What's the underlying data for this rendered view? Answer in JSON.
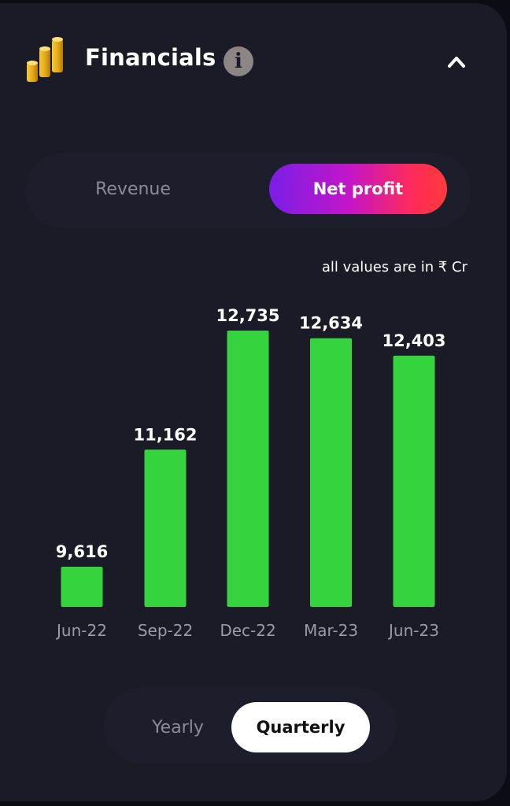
{
  "header": {
    "title": "Financials",
    "icon": "coin-stack-icon",
    "info_icon": "info-icon",
    "info_glyph": "i",
    "collapse_icon": "chevron-up-icon"
  },
  "metric_toggle": {
    "options": [
      "Revenue",
      "Net profit"
    ],
    "selected": "Net profit"
  },
  "units_note": "all values are in ₹ Cr",
  "period_toggle": {
    "options": [
      "Yearly",
      "Quarterly"
    ],
    "selected": "Quarterly"
  },
  "colors": {
    "background": "#1a1b27",
    "bar": "#35d43e",
    "tick_label": "#9a9ba6",
    "value_label": "#ffffff",
    "accent_gradient": [
      "#7a1ee6",
      "#c316c8",
      "#ff3b3b"
    ]
  },
  "chart_data": {
    "type": "bar",
    "categories": [
      "Jun-22",
      "Sep-22",
      "Dec-22",
      "Mar-23",
      "Jun-23"
    ],
    "values": [
      9616,
      11162,
      12735,
      12634,
      12403
    ],
    "value_labels": [
      "9,616",
      "11,162",
      "12,735",
      "12,634",
      "12,403"
    ],
    "title": "",
    "xlabel": "",
    "ylabel": "",
    "grid": false,
    "legend": "none"
  }
}
